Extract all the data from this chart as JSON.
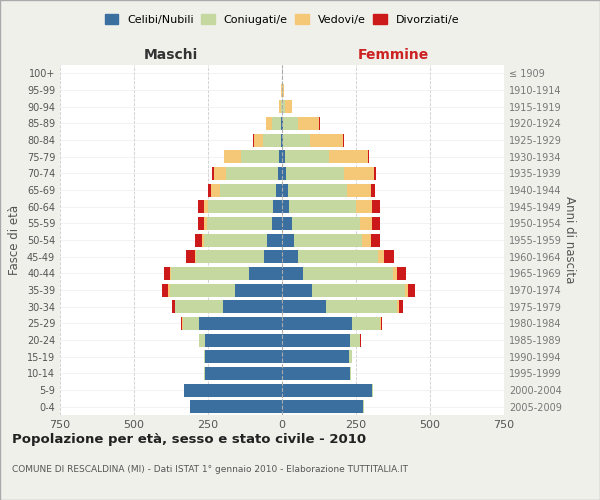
{
  "age_groups": [
    "0-4",
    "5-9",
    "10-14",
    "15-19",
    "20-24",
    "25-29",
    "30-34",
    "35-39",
    "40-44",
    "45-49",
    "50-54",
    "55-59",
    "60-64",
    "65-69",
    "70-74",
    "75-79",
    "80-84",
    "85-89",
    "90-94",
    "95-99",
    "100+"
  ],
  "birth_years": [
    "2005-2009",
    "2000-2004",
    "1995-1999",
    "1990-1994",
    "1985-1989",
    "1980-1984",
    "1975-1979",
    "1970-1974",
    "1965-1969",
    "1960-1964",
    "1955-1959",
    "1950-1954",
    "1945-1949",
    "1940-1944",
    "1935-1939",
    "1930-1934",
    "1925-1929",
    "1920-1924",
    "1915-1919",
    "1910-1914",
    "≤ 1909"
  ],
  "males": {
    "celibi": [
      310,
      330,
      260,
      260,
      260,
      280,
      200,
      160,
      110,
      60,
      50,
      35,
      30,
      20,
      15,
      10,
      5,
      5,
      0,
      0,
      0
    ],
    "coniugati": [
      2,
      2,
      2,
      5,
      20,
      55,
      160,
      220,
      265,
      230,
      215,
      220,
      220,
      190,
      175,
      130,
      60,
      30,
      5,
      0,
      0
    ],
    "vedovi": [
      0,
      0,
      0,
      0,
      0,
      2,
      2,
      5,
      5,
      5,
      5,
      10,
      15,
      30,
      40,
      55,
      30,
      20,
      5,
      2,
      0
    ],
    "divorziati": [
      0,
      0,
      0,
      0,
      2,
      5,
      10,
      20,
      20,
      30,
      25,
      20,
      20,
      10,
      5,
      2,
      2,
      0,
      0,
      0,
      0
    ]
  },
  "females": {
    "nubili": [
      275,
      305,
      230,
      225,
      230,
      235,
      150,
      100,
      70,
      55,
      40,
      35,
      25,
      20,
      15,
      10,
      5,
      5,
      0,
      0,
      0
    ],
    "coniugate": [
      3,
      3,
      3,
      10,
      35,
      95,
      240,
      315,
      305,
      270,
      230,
      230,
      225,
      200,
      195,
      150,
      90,
      50,
      10,
      2,
      0
    ],
    "vedove": [
      0,
      0,
      0,
      0,
      0,
      3,
      5,
      10,
      15,
      20,
      30,
      40,
      55,
      80,
      100,
      130,
      110,
      70,
      25,
      5,
      0
    ],
    "divorziate": [
      0,
      0,
      0,
      0,
      2,
      5,
      15,
      25,
      30,
      35,
      30,
      25,
      25,
      15,
      8,
      5,
      3,
      2,
      0,
      0,
      0
    ]
  },
  "color_celibi": "#3b6fa0",
  "color_coniugati": "#c5d8a0",
  "color_vedovi": "#f5c878",
  "color_divorziati": "#cc1a1a",
  "title": "Popolazione per età, sesso e stato civile - 2010",
  "subtitle": "COMUNE DI RESCALDINA (MI) - Dati ISTAT 1° gennaio 2010 - Elaborazione TUTTITALIA.IT",
  "xlabel_left": "Maschi",
  "xlabel_right": "Femmine",
  "ylabel_left": "Fasce di età",
  "ylabel_right": "Anni di nascita",
  "xmax": 750,
  "bg_color": "#f0f0eb",
  "plot_bg": "#ffffff",
  "legend_labels": [
    "Celibi/Nubili",
    "Coniugati/e",
    "Vedovi/e",
    "Divorziati/e"
  ]
}
